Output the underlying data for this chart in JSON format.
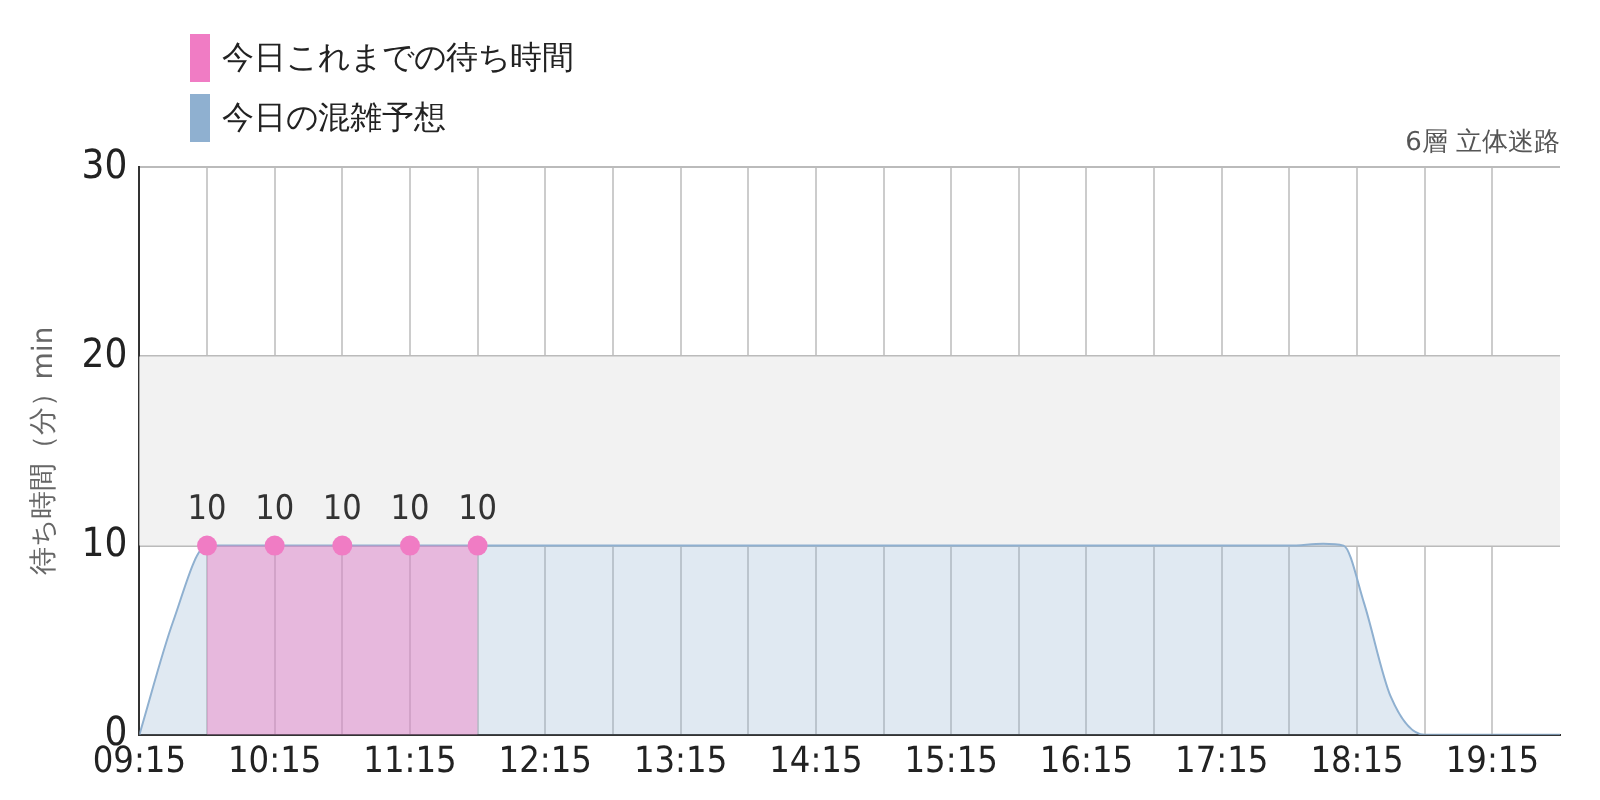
{
  "chart_data": {
    "type": "area",
    "title": "6層 立体迷路",
    "ylabel": "待ち時間（分）min",
    "xlim": [
      9.25,
      19.75
    ],
    "ylim": [
      0,
      30
    ],
    "xticks": [
      {
        "value": 9.25,
        "label": "09:15"
      },
      {
        "value": 9.75,
        "label": null
      },
      {
        "value": 10.25,
        "label": "10:15"
      },
      {
        "value": 10.75,
        "label": null
      },
      {
        "value": 11.25,
        "label": "11:15"
      },
      {
        "value": 11.75,
        "label": null
      },
      {
        "value": 12.25,
        "label": "12:15"
      },
      {
        "value": 12.75,
        "label": null
      },
      {
        "value": 13.25,
        "label": "13:15"
      },
      {
        "value": 13.75,
        "label": null
      },
      {
        "value": 14.25,
        "label": "14:15"
      },
      {
        "value": 14.75,
        "label": null
      },
      {
        "value": 15.25,
        "label": "15:15"
      },
      {
        "value": 15.75,
        "label": null
      },
      {
        "value": 16.25,
        "label": "16:15"
      },
      {
        "value": 16.75,
        "label": null
      },
      {
        "value": 17.25,
        "label": "17:15"
      },
      {
        "value": 17.75,
        "label": null
      },
      {
        "value": 18.25,
        "label": "18:15"
      },
      {
        "value": 18.75,
        "label": null
      },
      {
        "value": 19.25,
        "label": "19:15"
      }
    ],
    "yticks": [
      0,
      10,
      20,
      30
    ],
    "grid": true,
    "legend": "top left",
    "bands": [
      {
        "axis": "y",
        "from": 10,
        "to": 20,
        "color": "#f2f2f2"
      }
    ],
    "series": [
      {
        "name": "今日これまでの待ち時間",
        "color": "#f07cc4",
        "marker": "circle",
        "x": [
          9.75,
          10.25,
          10.75,
          11.25,
          11.75
        ],
        "values": [
          10,
          10,
          10,
          10,
          10
        ],
        "value_labels": [
          "10",
          "10",
          "10",
          "10",
          "10"
        ]
      },
      {
        "name": "今日の混雑予想",
        "color": "#8fb0d0",
        "marker": "none",
        "x": [
          9.25,
          9.5,
          9.75,
          10.25,
          12.25,
          14.25,
          16.25,
          17.75,
          18.0,
          18.15,
          18.3,
          18.5,
          18.75,
          19.0,
          19.75
        ],
        "values": [
          0,
          6,
          10,
          10,
          10,
          10,
          10,
          10,
          10.1,
          10,
          7,
          2,
          0,
          0,
          0
        ]
      }
    ]
  }
}
